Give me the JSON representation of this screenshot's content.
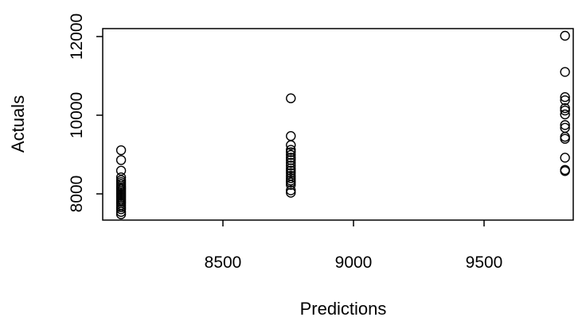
{
  "chart_data": {
    "type": "scatter",
    "title": "",
    "xlabel": "Predictions",
    "ylabel": "Actuals",
    "xlim": [
      8050,
      9900
    ],
    "ylim": [
      7350,
      12200
    ],
    "xticks": [
      8500,
      9000,
      9500
    ],
    "xtick_labels": [
      "8500",
      "9000",
      "9500"
    ],
    "yticks": [
      8000,
      10000,
      12000
    ],
    "ytick_labels": [
      "8000",
      "10000",
      "12000"
    ],
    "marker": "open-circle",
    "grid": false,
    "legend": "none",
    "colors": {
      "marker": "#000000",
      "axis": "#000000",
      "background": "#ffffff"
    },
    "series": [
      {
        "points": [
          [
            8110,
            7480
          ],
          [
            8110,
            7540
          ],
          [
            8110,
            7610
          ],
          [
            8110,
            7660
          ],
          [
            8110,
            7710
          ],
          [
            8110,
            7760
          ],
          [
            8110,
            7800
          ],
          [
            8110,
            7840
          ],
          [
            8110,
            7880
          ],
          [
            8110,
            7920
          ],
          [
            8110,
            7960
          ],
          [
            8110,
            8000
          ],
          [
            8110,
            8040
          ],
          [
            8110,
            8080
          ],
          [
            8110,
            8120
          ],
          [
            8110,
            8160
          ],
          [
            8110,
            8200
          ],
          [
            8110,
            8250
          ],
          [
            8110,
            8300
          ],
          [
            8110,
            8350
          ],
          [
            8110,
            8420
          ],
          [
            8110,
            8590
          ],
          [
            8110,
            8860
          ],
          [
            8110,
            9110
          ],
          [
            8760,
            8030
          ],
          [
            8760,
            8090
          ],
          [
            8760,
            8230
          ],
          [
            8760,
            8290
          ],
          [
            8760,
            8340
          ],
          [
            8760,
            8400
          ],
          [
            8760,
            8460
          ],
          [
            8760,
            8530
          ],
          [
            8760,
            8590
          ],
          [
            8760,
            8650
          ],
          [
            8760,
            8720
          ],
          [
            8760,
            8790
          ],
          [
            8760,
            8860
          ],
          [
            8760,
            8920
          ],
          [
            8760,
            8990
          ],
          [
            8760,
            9060
          ],
          [
            8760,
            9120
          ],
          [
            8760,
            9240
          ],
          [
            8760,
            9470
          ],
          [
            8760,
            10430
          ],
          [
            9810,
            8580
          ],
          [
            9810,
            8610
          ],
          [
            9810,
            8920
          ],
          [
            9810,
            9400
          ],
          [
            9810,
            9450
          ],
          [
            9810,
            9680
          ],
          [
            9810,
            9750
          ],
          [
            9810,
            10020
          ],
          [
            9810,
            10120
          ],
          [
            9810,
            10180
          ],
          [
            9810,
            10380
          ],
          [
            9810,
            10460
          ],
          [
            9810,
            11100
          ],
          [
            9810,
            12020
          ]
        ]
      }
    ]
  }
}
